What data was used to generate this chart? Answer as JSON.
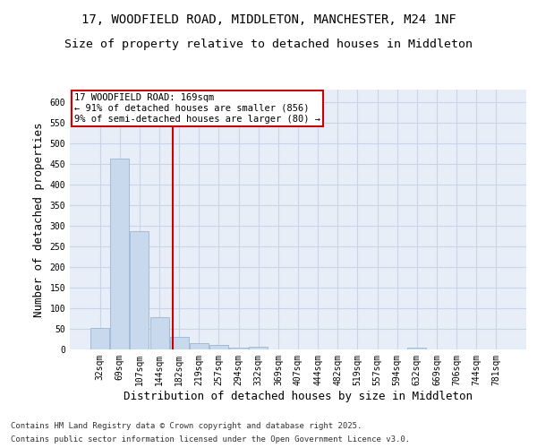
{
  "title_line1": "17, WOODFIELD ROAD, MIDDLETON, MANCHESTER, M24 1NF",
  "title_line2": "Size of property relative to detached houses in Middleton",
  "xlabel": "Distribution of detached houses by size in Middleton",
  "ylabel": "Number of detached properties",
  "categories": [
    "32sqm",
    "69sqm",
    "107sqm",
    "144sqm",
    "182sqm",
    "219sqm",
    "257sqm",
    "294sqm",
    "332sqm",
    "369sqm",
    "407sqm",
    "444sqm",
    "482sqm",
    "519sqm",
    "557sqm",
    "594sqm",
    "632sqm",
    "669sqm",
    "706sqm",
    "744sqm",
    "781sqm"
  ],
  "values": [
    53,
    463,
    287,
    78,
    31,
    15,
    10,
    5,
    7,
    0,
    0,
    0,
    0,
    0,
    0,
    0,
    5,
    0,
    0,
    0,
    0
  ],
  "bar_color": "#c8d9ee",
  "bar_edge_color": "#a0bcd8",
  "grid_color": "#c8d4e8",
  "background_color": "#e8eef8",
  "annotation_text": "17 WOODFIELD ROAD: 169sqm\n← 91% of detached houses are smaller (856)\n9% of semi-detached houses are larger (80) →",
  "vline_color": "#cc0000",
  "ylim": [
    0,
    630
  ],
  "yticks": [
    0,
    50,
    100,
    150,
    200,
    250,
    300,
    350,
    400,
    450,
    500,
    550,
    600
  ],
  "footer_line1": "Contains HM Land Registry data © Crown copyright and database right 2025.",
  "footer_line2": "Contains public sector information licensed under the Open Government Licence v3.0.",
  "title_fontsize": 10,
  "subtitle_fontsize": 9.5,
  "tick_fontsize": 7,
  "label_fontsize": 9,
  "footer_fontsize": 6.5,
  "annotation_fontsize": 7.5
}
